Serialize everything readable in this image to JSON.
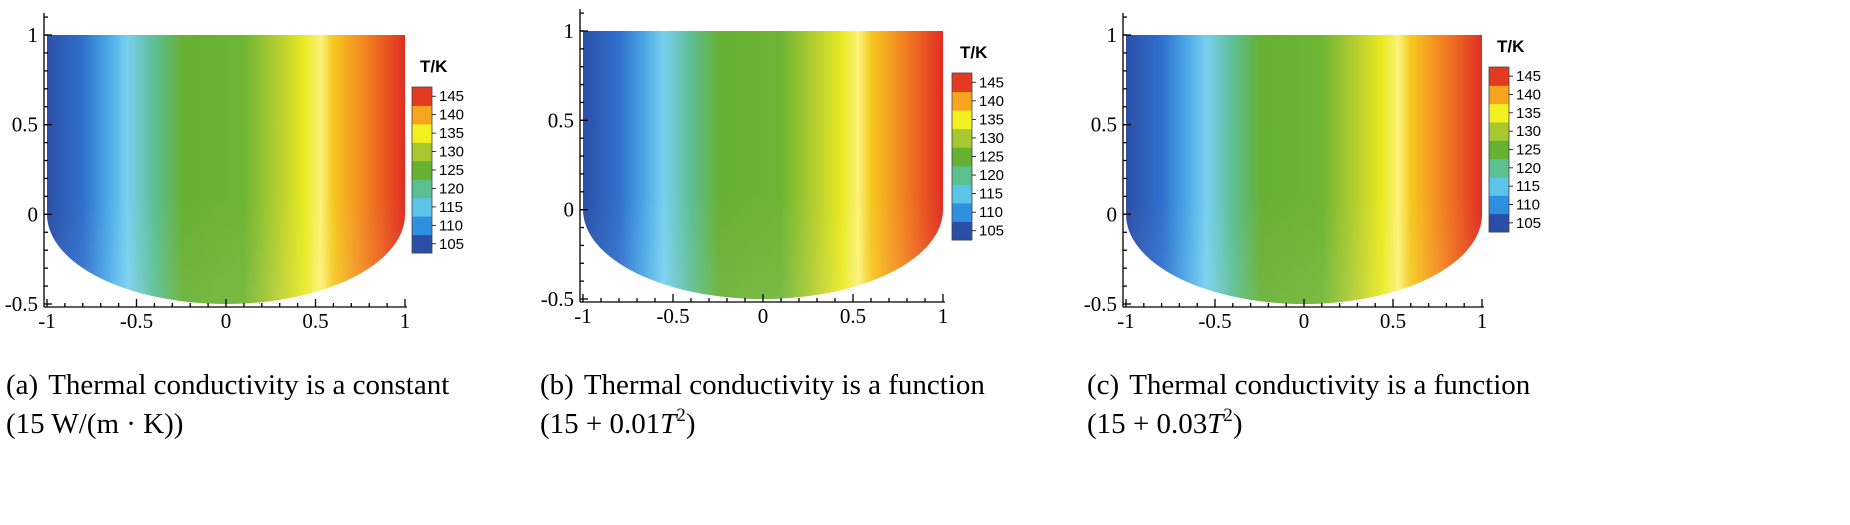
{
  "colorbar": {
    "title": "T/K",
    "levels": [
      105,
      110,
      115,
      120,
      125,
      130,
      135,
      140,
      145
    ],
    "colors": [
      "#2b4fa6",
      "#2f8fe0",
      "#5cc4e8",
      "#5bbf8f",
      "#66b032",
      "#a8c830",
      "#f2f020",
      "#f7a41e",
      "#e33a22"
    ]
  },
  "axes": {
    "xticks": [
      "-1",
      "-0.5",
      "0",
      "0.5",
      "1"
    ],
    "yticks": [
      "1",
      "0.5",
      "0",
      "-0.5"
    ]
  },
  "panels": [
    {
      "caption": {
        "tag": "(a)",
        "line1": "Thermal conductivity is a constant",
        "line2": "(15 W/(m · K))"
      }
    },
    {
      "caption": {
        "tag": "(b)",
        "line1": "Thermal conductivity is a function",
        "line2_a": "(15 + 0.01",
        "line2_var": "T",
        "line2_exp": "2",
        "line2_b": ")"
      }
    },
    {
      "caption": {
        "tag": "(c)",
        "line1": "Thermal conductivity is a function",
        "line2_a": "(15 + 0.03",
        "line2_var": "T",
        "line2_exp": "2",
        "line2_b": ")"
      }
    }
  ],
  "chart_data": [
    {
      "type": "heatmap",
      "title": "",
      "xlabel": "",
      "ylabel": "",
      "xlim": [
        -1,
        1
      ],
      "ylim": [
        -0.5,
        1
      ],
      "legend_title": "T/K",
      "legend_levels": [
        105,
        110,
        115,
        120,
        125,
        130,
        135,
        140,
        145
      ],
      "temperature_profile_x": [
        -1,
        -0.7,
        -0.35,
        0,
        0.35,
        0.55,
        0.8,
        1
      ],
      "temperature_profile_T": [
        103,
        112,
        122,
        127,
        134,
        139,
        143,
        147
      ]
    },
    {
      "type": "heatmap",
      "title": "",
      "xlabel": "",
      "ylabel": "",
      "xlim": [
        -1,
        1
      ],
      "ylim": [
        -0.5,
        1
      ],
      "legend_title": "T/K",
      "legend_levels": [
        105,
        110,
        115,
        120,
        125,
        130,
        135,
        140,
        145
      ],
      "temperature_profile_x": [
        -1,
        -0.7,
        -0.35,
        0,
        0.35,
        0.55,
        0.8,
        1
      ],
      "temperature_profile_T": [
        103,
        112,
        122,
        127,
        134,
        139,
        143,
        147
      ]
    },
    {
      "type": "heatmap",
      "title": "",
      "xlabel": "",
      "ylabel": "",
      "xlim": [
        -1,
        1
      ],
      "ylim": [
        -0.5,
        1
      ],
      "legend_title": "T/K",
      "legend_levels": [
        105,
        110,
        115,
        120,
        125,
        130,
        135,
        140,
        145
      ],
      "temperature_profile_x": [
        -1,
        -0.7,
        -0.35,
        0,
        0.35,
        0.55,
        0.8,
        1
      ],
      "temperature_profile_T": [
        103,
        112,
        122,
        127,
        134,
        139,
        143,
        147
      ]
    }
  ]
}
